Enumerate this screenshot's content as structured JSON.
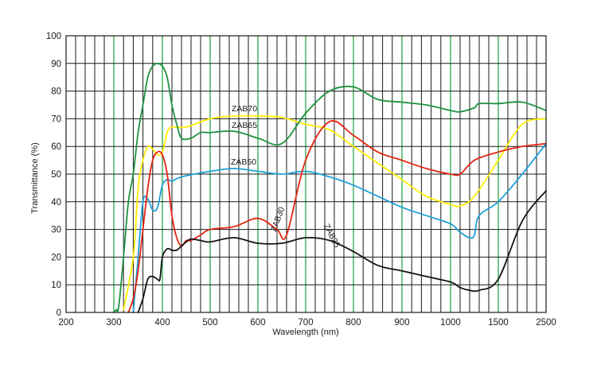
{
  "chart_data": {
    "type": "line",
    "xlabel": "Wavelength (nm)",
    "ylabel": "Transmittance (%)",
    "ylim": [
      0,
      100
    ],
    "grid": true,
    "x_tick_labels": [
      "200",
      "300",
      "400",
      "500",
      "600",
      "700",
      "800",
      "900",
      "1000",
      "1500",
      "2500"
    ],
    "y_tick_labels": [
      "0",
      "10",
      "20",
      "30",
      "40",
      "50",
      "60",
      "70",
      "80",
      "90",
      "100"
    ],
    "series": [
      {
        "name": "ZAB70",
        "color": "#ffee00",
        "x": [
          320,
          340,
          350,
          360,
          370,
          380,
          390,
          400,
          410,
          420,
          450,
          500,
          550,
          600,
          650,
          700,
          750,
          800,
          850,
          900,
          950,
          1000,
          1100,
          1250,
          1500,
          2000,
          2500
        ],
        "y": [
          1,
          20,
          45,
          55,
          60,
          59,
          57,
          58,
          65,
          67,
          67,
          70,
          71,
          71,
          70.5,
          68,
          66,
          60,
          54,
          48,
          42,
          39,
          38.5,
          42,
          55,
          68,
          70
        ]
      },
      {
        "name": "ZAB65",
        "color": "#1f9140",
        "x": [
          300,
          305,
          310,
          320,
          330,
          340,
          350,
          360,
          370,
          380,
          390,
          400,
          410,
          420,
          430,
          440,
          460,
          480,
          500,
          550,
          600,
          650,
          700,
          750,
          800,
          850,
          900,
          950,
          1000,
          1100,
          1250,
          1300,
          1500,
          2000,
          2500
        ],
        "y": [
          0,
          1,
          2,
          20,
          40,
          50,
          65,
          75,
          85,
          89,
          90,
          89,
          85,
          75,
          68,
          63,
          63,
          65,
          65,
          65.5,
          63,
          61,
          72,
          80,
          81.5,
          77,
          76,
          75,
          73,
          72.5,
          74,
          75.5,
          75.5,
          76,
          73
        ]
      },
      {
        "name": "ZAB50",
        "color": "#1ea0d8",
        "x": [
          340,
          350,
          360,
          370,
          380,
          390,
          400,
          410,
          420,
          440,
          500,
          550,
          600,
          650,
          700,
          750,
          800,
          850,
          900,
          950,
          1000,
          1100,
          1200,
          1250,
          1300,
          1500,
          2000,
          2500
        ],
        "y": [
          0,
          20,
          40,
          41,
          37,
          38,
          46,
          48,
          47.5,
          49,
          51,
          52,
          51,
          50,
          51,
          49,
          46,
          42,
          38,
          35,
          32,
          29,
          27,
          28,
          35,
          40,
          50,
          61
        ]
      },
      {
        "name": "ZAB30",
        "color": "#e62410",
        "x": [
          330,
          340,
          350,
          360,
          370,
          380,
          390,
          400,
          410,
          420,
          430,
          440,
          450,
          460,
          480,
          500,
          550,
          600,
          640,
          660,
          700,
          750,
          800,
          850,
          900,
          950,
          1000,
          1100,
          1250,
          1500,
          2000,
          2500
        ],
        "y": [
          0,
          5,
          15,
          30,
          45,
          55,
          58,
          57,
          50,
          35,
          27,
          24,
          26,
          26,
          28,
          30,
          31,
          34,
          30,
          28,
          55,
          69,
          64,
          58,
          55,
          52,
          50,
          50,
          55,
          58,
          60,
          61
        ]
      },
      {
        "name": "ZAB25",
        "color": "#141414",
        "x": [
          350,
          360,
          370,
          380,
          390,
          395,
          400,
          410,
          420,
          430,
          440,
          450,
          460,
          480,
          500,
          550,
          600,
          650,
          700,
          750,
          800,
          850,
          900,
          950,
          1000,
          1100,
          1200,
          1300,
          1500,
          2000,
          2500
        ],
        "y": [
          0,
          5,
          12,
          13,
          12,
          12,
          20,
          23,
          22.5,
          22.5,
          24,
          25.5,
          26.5,
          26,
          25.5,
          27,
          25,
          25,
          27,
          26,
          22,
          17,
          15,
          13,
          11,
          9,
          8,
          8,
          12,
          33,
          44
        ]
      }
    ],
    "annotations": [
      "ZAB70",
      "ZAB65",
      "ZAB50",
      "ZAB30",
      "ZAB25"
    ]
  }
}
